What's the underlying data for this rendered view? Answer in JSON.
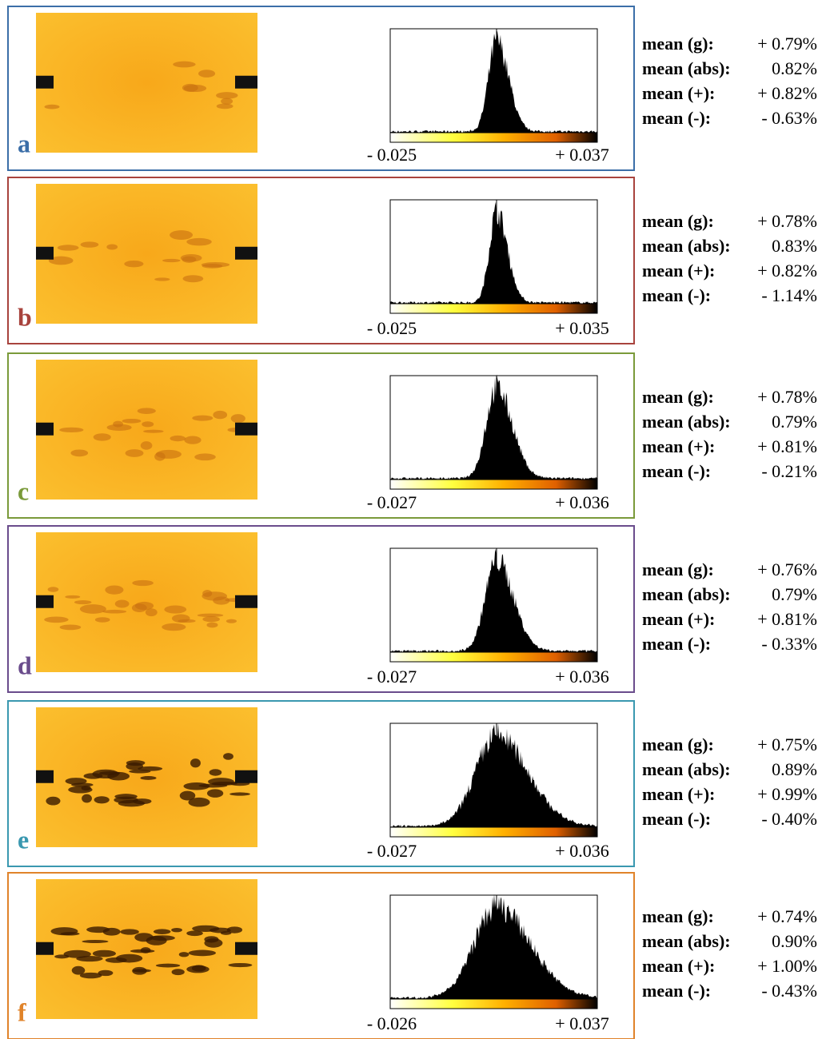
{
  "panels": [
    {
      "label": "a",
      "range": {
        "min": "- 0.025",
        "max": "+ 0.037"
      },
      "stats": [
        {
          "name": "mean (g):",
          "value": "+ 0.79%"
        },
        {
          "name": "mean (abs):",
          "value": "0.82%"
        },
        {
          "name": "mean (+):",
          "value": "+ 0.82%"
        },
        {
          "name": "mean (-):",
          "value": "- 0.63%"
        }
      ]
    },
    {
      "label": "b",
      "range": {
        "min": "- 0.025",
        "max": "+ 0.035"
      },
      "stats": [
        {
          "name": "mean (g):",
          "value": "+ 0.78%"
        },
        {
          "name": "mean (abs):",
          "value": "0.83%"
        },
        {
          "name": "mean (+):",
          "value": "+ 0.82%"
        },
        {
          "name": "mean (-):",
          "value": "- 1.14%"
        }
      ]
    },
    {
      "label": "c",
      "range": {
        "min": "- 0.027",
        "max": "+ 0.036"
      },
      "stats": [
        {
          "name": "mean (g):",
          "value": "+ 0.78%"
        },
        {
          "name": "mean (abs):",
          "value": "0.79%"
        },
        {
          "name": "mean (+):",
          "value": "+ 0.81%"
        },
        {
          "name": "mean (-):",
          "value": "- 0.21%"
        }
      ]
    },
    {
      "label": "d",
      "range": {
        "min": "- 0.027",
        "max": "+ 0.036"
      },
      "stats": [
        {
          "name": "mean (g):",
          "value": "+ 0.76%"
        },
        {
          "name": "mean (abs):",
          "value": "0.79%"
        },
        {
          "name": "mean (+):",
          "value": "+ 0.81%"
        },
        {
          "name": "mean (-):",
          "value": "- 0.33%"
        }
      ]
    },
    {
      "label": "e",
      "range": {
        "min": "- 0.027",
        "max": "+ 0.036"
      },
      "stats": [
        {
          "name": "mean (g):",
          "value": "+ 0.75%"
        },
        {
          "name": "mean (abs):",
          "value": "0.89%"
        },
        {
          "name": "mean (+):",
          "value": "+ 0.99%"
        },
        {
          "name": "mean (-):",
          "value": "- 0.40%"
        }
      ]
    },
    {
      "label": "f",
      "range": {
        "min": "- 0.026",
        "max": "+ 0.037"
      },
      "stats": [
        {
          "name": "mean (g):",
          "value": "+ 0.74%"
        },
        {
          "name": "mean (abs):",
          "value": "0.90%"
        },
        {
          "name": "mean (+):",
          "value": "+ 1.00%"
        },
        {
          "name": "mean (-):",
          "value": "- 0.43%"
        }
      ]
    }
  ]
}
